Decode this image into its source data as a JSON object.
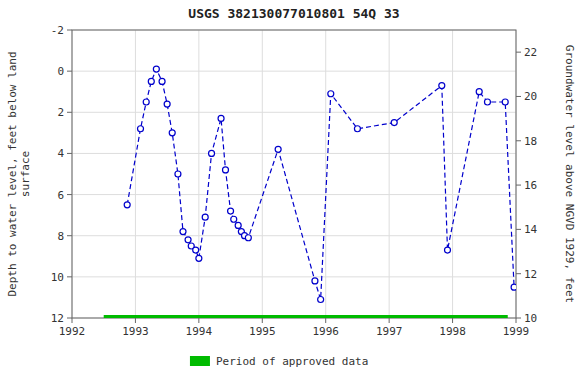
{
  "chart_data": {
    "type": "line",
    "title": "USGS 382130077010801 54Q 33",
    "y_label": "Depth to water level, feet below land\nsurface",
    "y2_label": "Groundwater level above NGVD 1929, feet",
    "xlim": [
      1992,
      1999
    ],
    "xticks": [
      1992,
      1993,
      1994,
      1995,
      1996,
      1997,
      1998,
      1999
    ],
    "ylim": [
      12,
      -2
    ],
    "yticks": [
      -2,
      0,
      2,
      4,
      6,
      8,
      10,
      12
    ],
    "y2lim": [
      10,
      23
    ],
    "y2ticks": [
      10,
      12,
      14,
      16,
      18,
      20,
      22
    ],
    "grid": true,
    "legend": "bottom",
    "series": [
      {
        "color": "#0000cc",
        "marker": "circle",
        "line_style": "dashed",
        "x": [
          1992.87,
          1993.08,
          1993.17,
          1993.25,
          1993.33,
          1993.42,
          1993.5,
          1993.58,
          1993.67,
          1993.75,
          1993.83,
          1993.88,
          1993.95,
          1994.0,
          1994.1,
          1994.2,
          1994.35,
          1994.42,
          1994.5,
          1994.55,
          1994.62,
          1994.67,
          1994.72,
          1994.78,
          1995.25,
          1995.83,
          1995.92,
          1996.08,
          1996.5,
          1997.08,
          1997.83,
          1997.92,
          1998.42,
          1998.55,
          1998.83,
          1998.97
        ],
        "values": [
          6.5,
          2.8,
          1.5,
          0.5,
          -0.1,
          0.5,
          1.6,
          3.0,
          5.0,
          7.8,
          8.2,
          8.5,
          8.7,
          9.1,
          7.1,
          4.0,
          2.3,
          4.8,
          6.8,
          7.2,
          7.5,
          7.8,
          8.0,
          8.1,
          3.8,
          10.2,
          11.1,
          1.1,
          2.8,
          2.5,
          0.7,
          8.7,
          1.0,
          1.5,
          1.5,
          10.5
        ]
      },
      {
        "name": "Period of approved data",
        "color": "#00bb00",
        "line_style": "solid",
        "x": [
          1992.5,
          1998.87
        ],
        "values": [
          12,
          12
        ]
      }
    ]
  }
}
